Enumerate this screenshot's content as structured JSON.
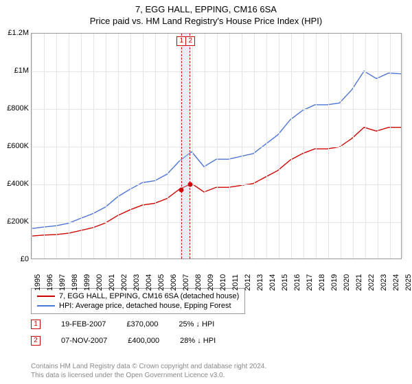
{
  "titles": {
    "main": "7, EGG HALL, EPPING, CM16 6SA",
    "sub": "Price paid vs. HM Land Registry's House Price Index (HPI)"
  },
  "chart": {
    "type": "line",
    "background_color": "#ffffff",
    "grid_color": "#e5e5e5",
    "border_color": "#999999",
    "x_years": [
      1995,
      1996,
      1997,
      1998,
      1999,
      2000,
      2001,
      2002,
      2003,
      2004,
      2005,
      2006,
      2007,
      2008,
      2009,
      2010,
      2011,
      2012,
      2013,
      2014,
      2015,
      2016,
      2017,
      2018,
      2019,
      2020,
      2021,
      2022,
      2023,
      2024,
      2025
    ],
    "x_label_fontsize": 11,
    "ylim": [
      0,
      1200000
    ],
    "ytick_step": 200000,
    "y_labels": [
      "£0",
      "£200K",
      "£400K",
      "£600K",
      "£800K",
      "£1M",
      "£1.2M"
    ],
    "y_label_fontsize": 11,
    "series": {
      "paid": {
        "color": "#d00000",
        "line_width": 1.4,
        "values": [
          120000,
          125000,
          128000,
          135000,
          150000,
          165000,
          190000,
          230000,
          260000,
          285000,
          295000,
          320000,
          370000,
          400000,
          355000,
          380000,
          380000,
          390000,
          400000,
          435000,
          470000,
          525000,
          560000,
          585000,
          585000,
          595000,
          640000,
          700000,
          680000,
          700000,
          700000
        ]
      },
      "hpi": {
        "color": "#4a74d6",
        "line_width": 1.4,
        "values": [
          160000,
          168000,
          175000,
          188000,
          215000,
          240000,
          275000,
          330000,
          370000,
          405000,
          415000,
          450000,
          520000,
          570000,
          490000,
          530000,
          530000,
          545000,
          560000,
          610000,
          660000,
          740000,
          790000,
          820000,
          820000,
          830000,
          900000,
          1000000,
          960000,
          990000,
          985000
        ]
      }
    },
    "band": {
      "start_year": 2007.1,
      "end_year": 2007.85
    },
    "markers": [
      {
        "label": "1",
        "year": 2007.13,
        "value": 370000,
        "color": "#d00000"
      },
      {
        "label": "2",
        "year": 2007.85,
        "value": 400000,
        "color": "#d00000"
      }
    ]
  },
  "legend": {
    "items": [
      {
        "color": "#d00000",
        "label": "7, EGG HALL, EPPING, CM16 6SA (detached house)"
      },
      {
        "color": "#4a74d6",
        "label": "HPI: Average price, detached house, Epping Forest"
      }
    ]
  },
  "sales": [
    {
      "num": "1",
      "date": "19-FEB-2007",
      "price": "£370,000",
      "delta": "25% ↓ HPI"
    },
    {
      "num": "2",
      "date": "07-NOV-2007",
      "price": "£400,000",
      "delta": "28% ↓ HPI"
    }
  ],
  "footer": {
    "line1": "Contains HM Land Registry data © Crown copyright and database right 2024.",
    "line2": "This data is licensed under the Open Government Licence v3.0."
  }
}
